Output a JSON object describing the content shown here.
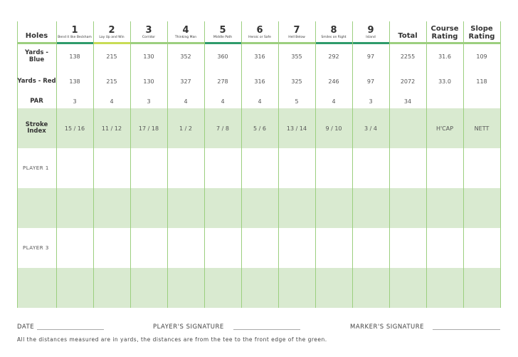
{
  "header": {
    "label": "Holes",
    "holes": [
      {
        "number": 1,
        "name": "Bend it like Beckham"
      },
      {
        "number": 2,
        "name": "Lay Up and Win"
      },
      {
        "number": 3,
        "name": "Corridor"
      },
      {
        "number": 4,
        "name": "Thinking Man"
      },
      {
        "number": 5,
        "name": "Middle Path"
      },
      {
        "number": 6,
        "name": "Heroic or Safe"
      },
      {
        "number": 7,
        "name": "Hell Below"
      },
      {
        "number": 8,
        "name": "Smiles on Right"
      },
      {
        "number": 9,
        "name": "Island"
      }
    ],
    "total": "Total",
    "course_rating": "Course Rating",
    "slope_rating": "Slope Rating"
  },
  "rows": [
    {
      "label": "Yards - Blue",
      "cells": [
        138,
        215,
        130,
        352,
        360,
        316,
        355,
        292,
        97,
        2255,
        31.6,
        109
      ]
    },
    {
      "label": "Yards - Red",
      "cells": [
        138,
        215,
        130,
        327,
        278,
        316,
        325,
        246,
        97,
        2072,
        "33.0",
        118
      ]
    },
    {
      "label": "PAR",
      "cells": [
        3,
        4,
        3,
        4,
        4,
        4,
        5,
        4,
        3,
        34,
        null,
        null
      ]
    },
    {
      "label": "Stroke Index",
      "cells": [
        "15 / 16",
        "11 / 12",
        "17 / 18",
        "1 / 2",
        "7 / 8",
        "5 / 6",
        "13 / 14",
        "9 / 10",
        "3 / 4",
        null,
        "H'CAP",
        "NETT"
      ]
    }
  ],
  "players": [
    "PLAYER 1",
    "PLAYER 3"
  ],
  "footer": {
    "date": "DATE",
    "player_signature": "PLAYER'S SIGNATURE",
    "marker_signature": "MARKER'S SIGNATURE",
    "note": "All the distances measured are in yards, the distances are from the tee to the front edge of the green."
  }
}
